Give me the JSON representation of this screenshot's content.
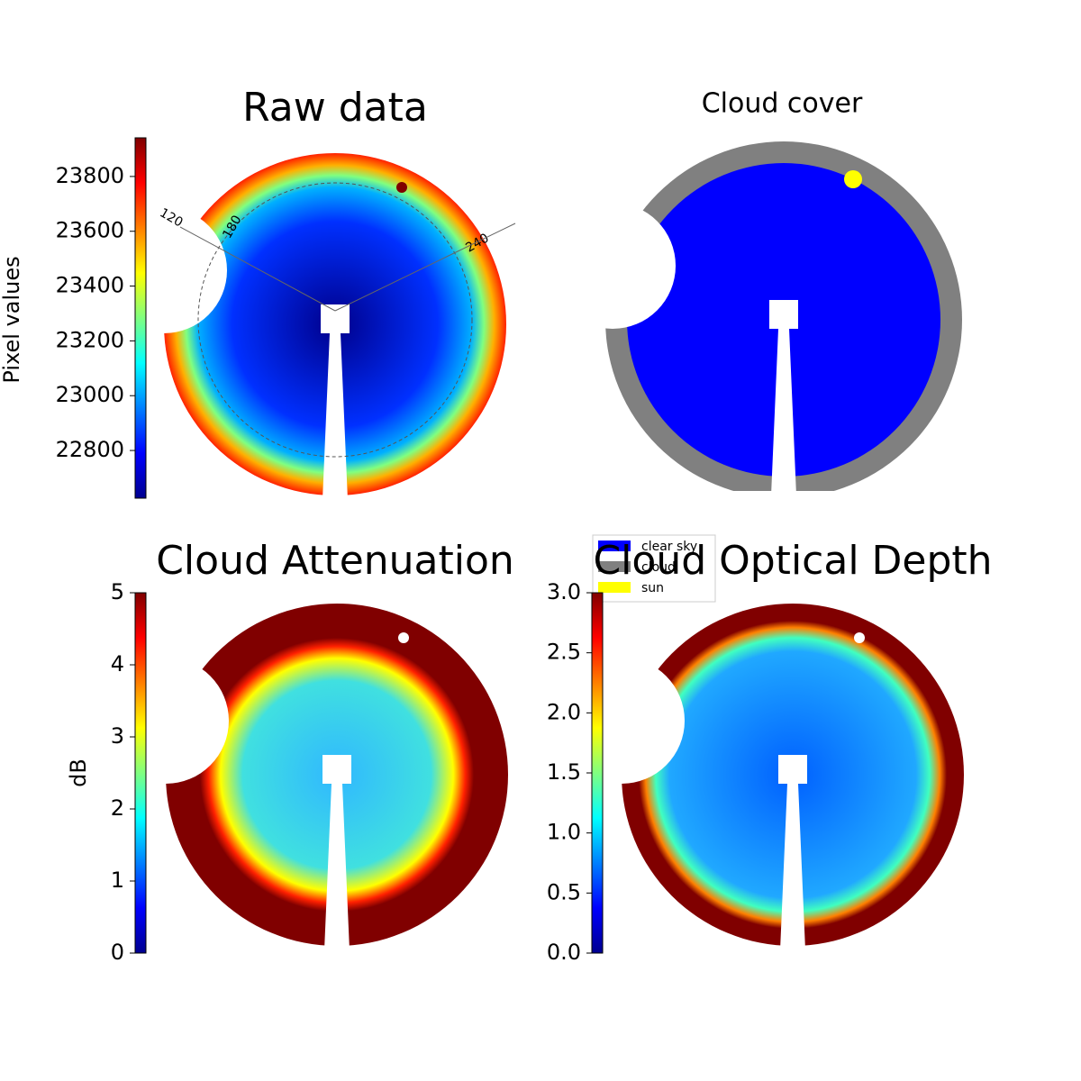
{
  "chart_data": [
    {
      "type": "image",
      "title": "Raw data",
      "colorbar_label": "Pixel values",
      "colormap": "jet",
      "clim": [
        22626,
        23941
      ],
      "cticks": [
        22800,
        23000,
        23200,
        23400,
        23600,
        23800
      ],
      "annotations": [
        "120",
        "180",
        "240"
      ]
    },
    {
      "type": "image",
      "title": "Cloud cover",
      "legend": [
        {
          "name": "clear sky",
          "color": "#0000ff"
        },
        {
          "name": "cloud",
          "color": "#808080"
        },
        {
          "name": "sun",
          "color": "#ffff00"
        }
      ]
    },
    {
      "type": "image",
      "title": "Cloud Attenuation",
      "colorbar_label": "dB",
      "colormap": "jet",
      "clim": [
        0,
        5
      ],
      "cticks": [
        0,
        1,
        2,
        3,
        4,
        5
      ]
    },
    {
      "type": "image",
      "title": "Cloud Optical Depth",
      "colormap": "jet",
      "clim": [
        0,
        3
      ],
      "cticks": [
        {
          "value": 0,
          "label": "0.0"
        },
        {
          "value": 0.5,
          "label": "0.5"
        },
        {
          "value": 1,
          "label": "1.0"
        },
        {
          "value": 1.5,
          "label": "1.5"
        },
        {
          "value": 2,
          "label": "2.0"
        },
        {
          "value": 2.5,
          "label": "2.5"
        },
        {
          "value": 3,
          "label": "3.0"
        }
      ]
    }
  ]
}
